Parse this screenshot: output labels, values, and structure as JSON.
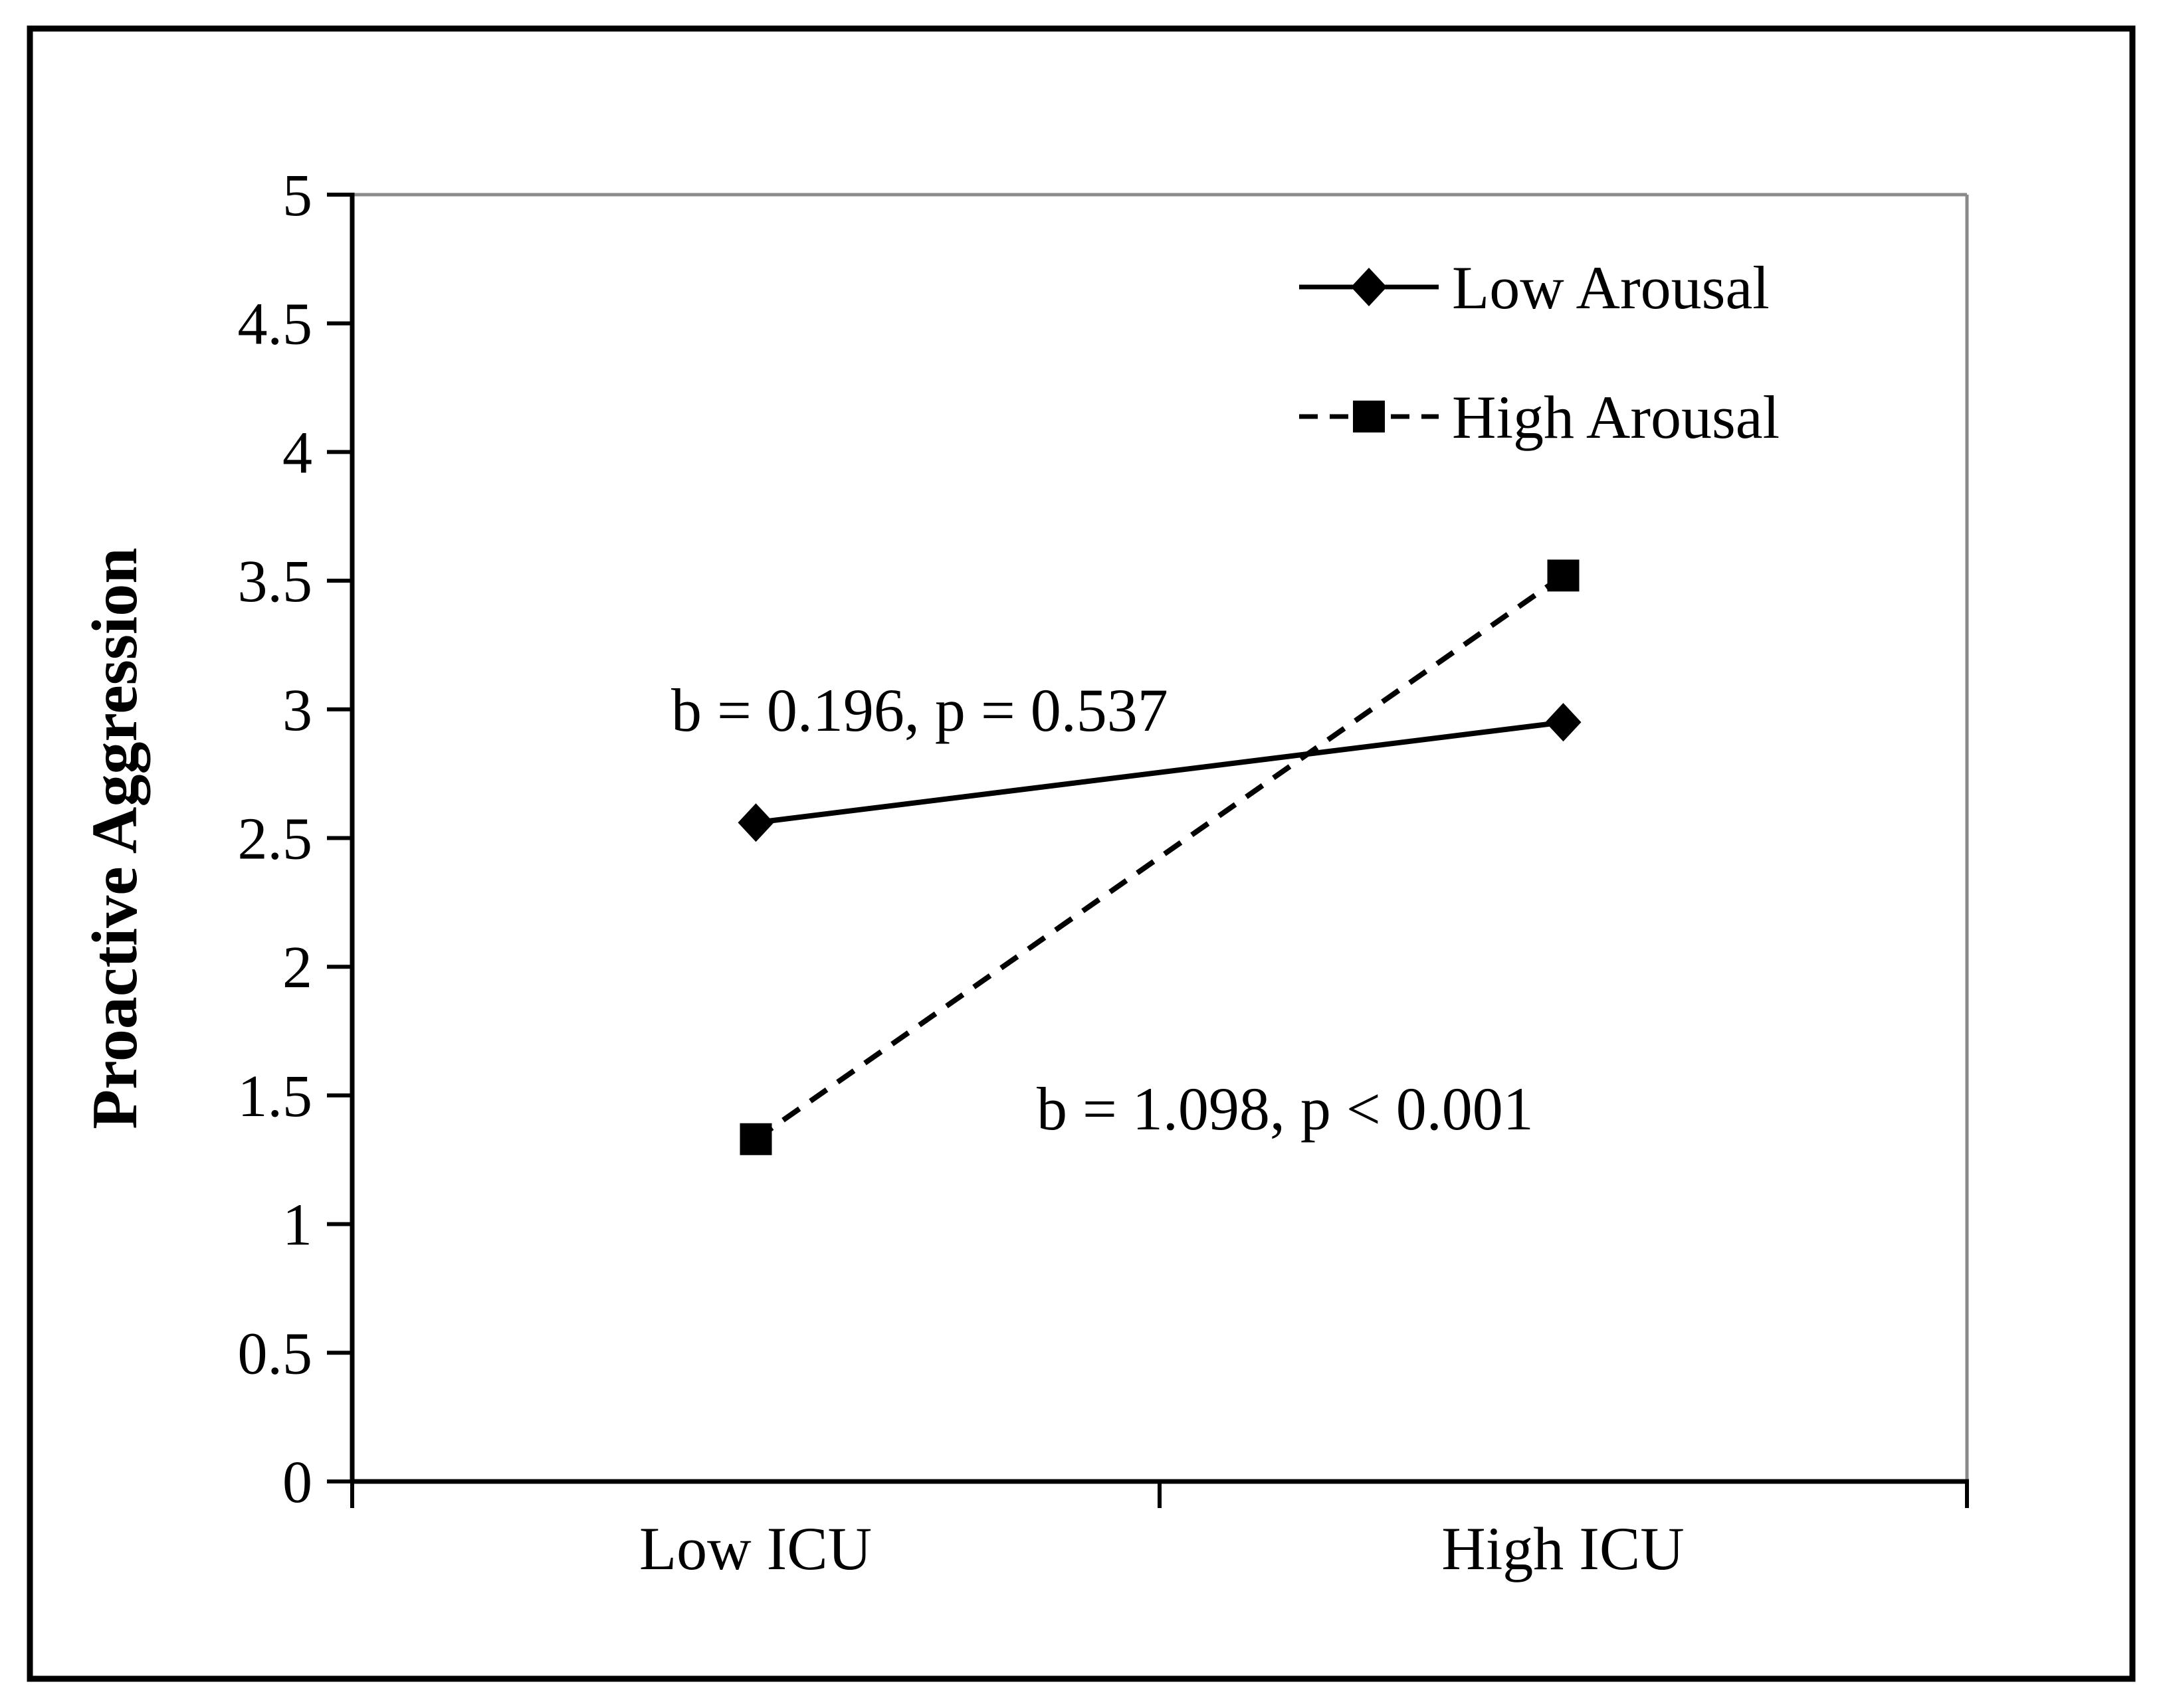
{
  "figure": {
    "background": "#ffffff",
    "border_color": "#000000"
  },
  "chart_data": {
    "type": "line",
    "title": "",
    "categories": [
      "Low ICU",
      "High ICU"
    ],
    "series": [
      {
        "name": "Low Arousal",
        "values": [
          2.56,
          2.95
        ],
        "line_style": "solid",
        "marker": "diamond",
        "color": "#000000"
      },
      {
        "name": "High Arousal",
        "values": [
          1.33,
          3.52
        ],
        "line_style": "dashed",
        "marker": "square",
        "color": "#000000"
      }
    ],
    "annotations": [
      {
        "text": "b = 0.196, p = 0.537",
        "refers_to": "Low Arousal"
      },
      {
        "text": "b = 1.098, p < 0.001",
        "refers_to": "High Arousal"
      }
    ],
    "xlabel": "",
    "ylabel": "Proactive Aggression",
    "ylim": [
      0,
      5
    ],
    "y_ticks": [
      0,
      0.5,
      1,
      1.5,
      2,
      2.5,
      3,
      3.5,
      4,
      4.5,
      5
    ],
    "grid": false,
    "legend_position": "top-right-inside",
    "colors": {
      "axis": "#000000",
      "plot_border_top_right": "#8a8a8a",
      "text": "#000000"
    }
  }
}
